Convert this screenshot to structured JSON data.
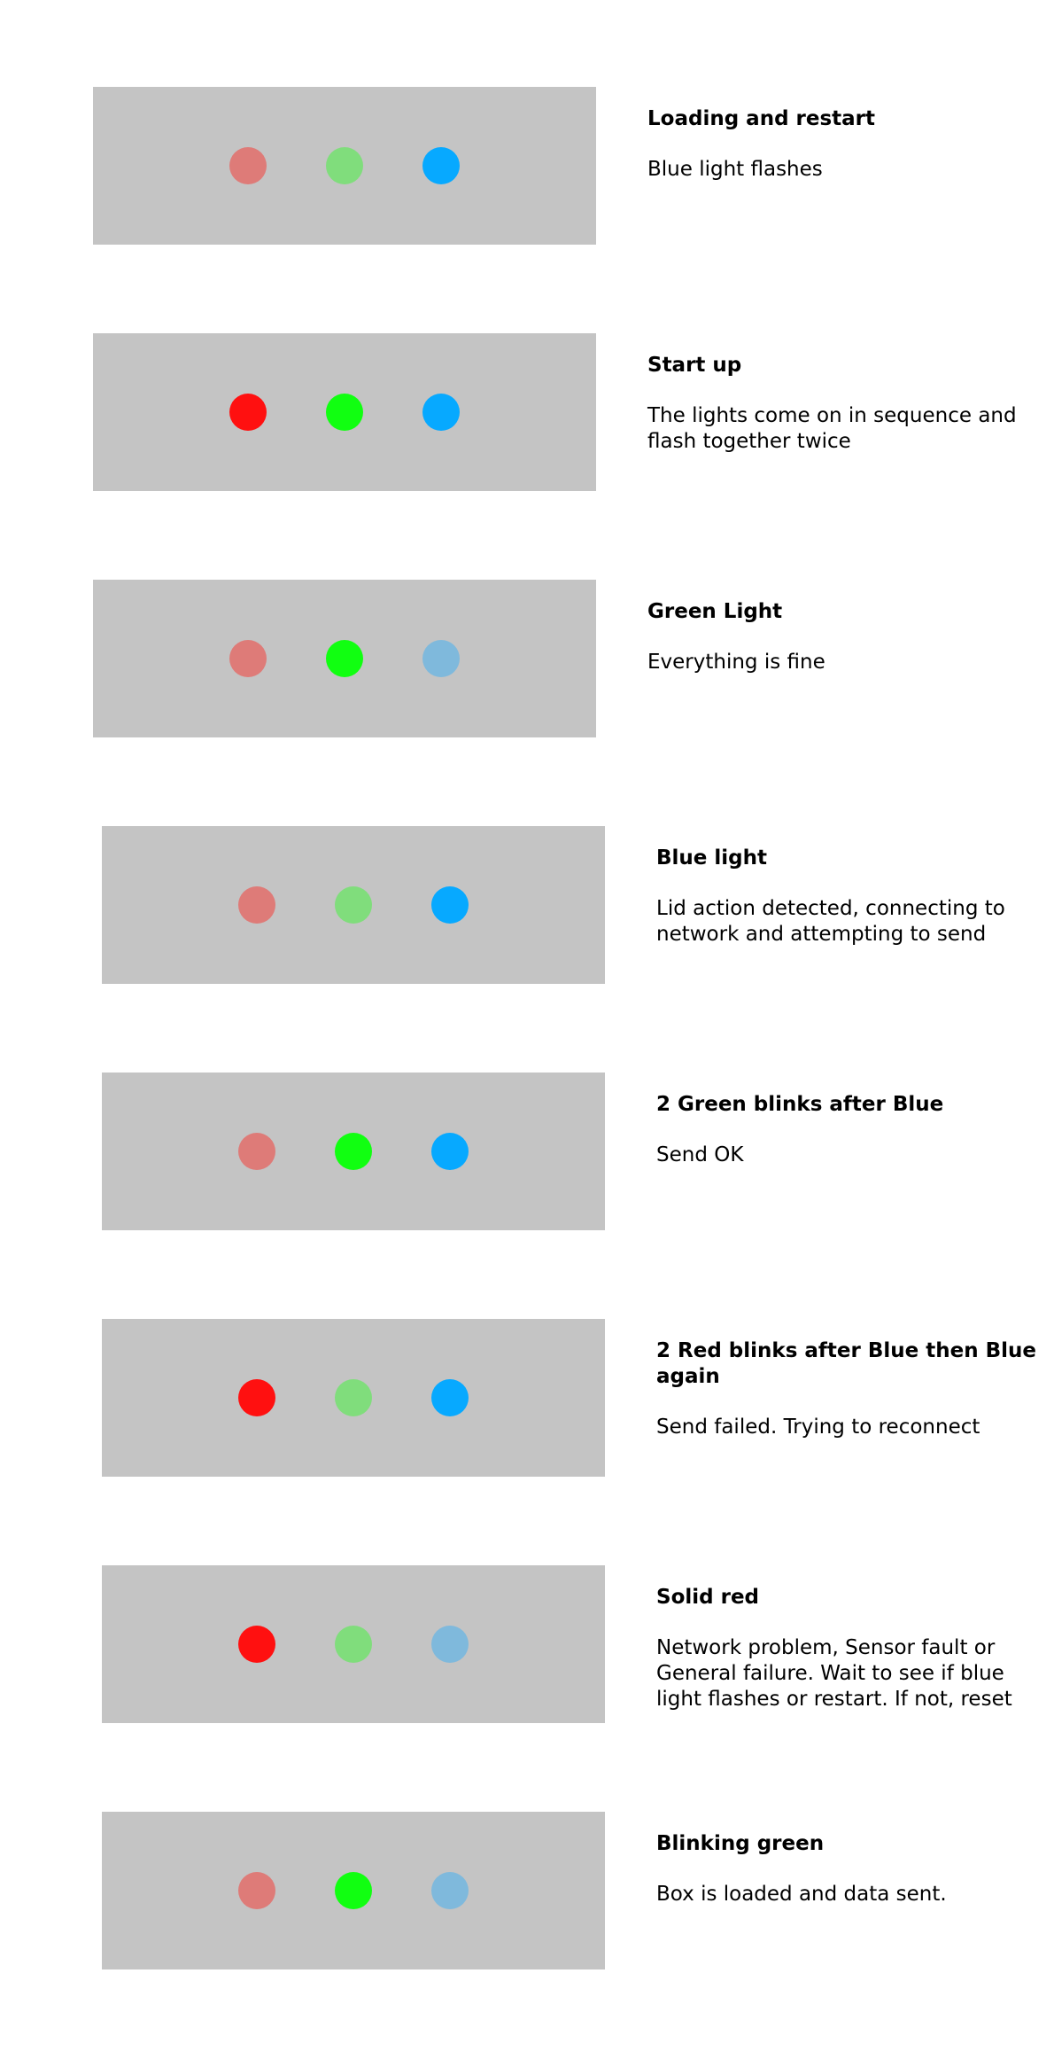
{
  "colors": {
    "panel": "#c4c4c4",
    "red_on": "#ff1010",
    "red_off": "#de7b78",
    "green_on": "#11ff11",
    "green_off": "#80dd7c",
    "blue_on": "#07a9ff",
    "blue_off": "#7fb9dc"
  },
  "states": [
    {
      "title": "Loading and restart",
      "description": "Blue light flashes",
      "red": "off",
      "green": "off",
      "blue": "on"
    },
    {
      "title": "Start up",
      "description": "The lights come on in sequence and flash together twice",
      "red": "on",
      "green": "on",
      "blue": "on"
    },
    {
      "title": "Green Light",
      "description": "Everything is fine",
      "red": "off",
      "green": "on",
      "blue": "off"
    },
    {
      "title": "Blue light",
      "description": "Lid action detected, connecting to network and attempting to send",
      "red": "off",
      "green": "off",
      "blue": "on"
    },
    {
      "title": "2 Green blinks after Blue",
      "description": "Send OK",
      "red": "off",
      "green": "on",
      "blue": "on"
    },
    {
      "title": "2 Red blinks after Blue then Blue again",
      "description": "Send failed. Trying to reconnect",
      "red": "on",
      "green": "off",
      "blue": "on"
    },
    {
      "title": "Solid red",
      "description": "Network problem, Sensor fault or General failure. Wait to see if blue light flashes or restart. If not, reset",
      "red": "on",
      "green": "off",
      "blue": "off"
    },
    {
      "title": "Blinking green",
      "description": "Box is loaded and data sent.",
      "red": "off",
      "green": "on",
      "blue": "off"
    }
  ]
}
